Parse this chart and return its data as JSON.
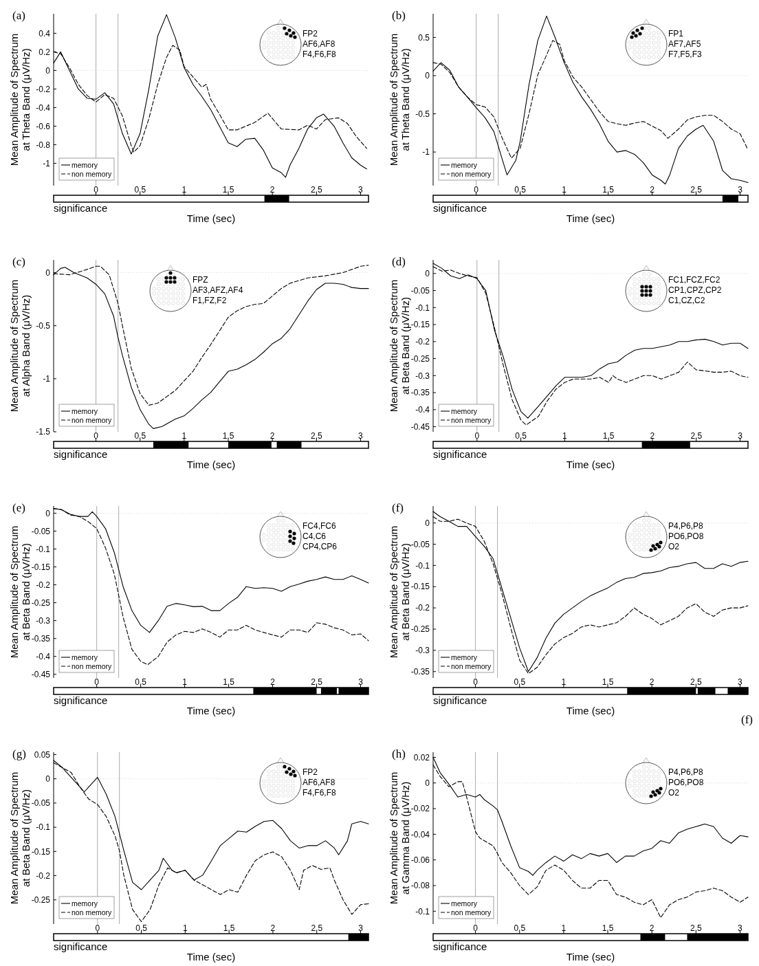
{
  "chart_data": [
    {
      "type": "line",
      "title": "(a)",
      "tick_labels": "y",
      "xlabel": "Time (sec)",
      "ylabel": "Mean Amplitude of Spectrum\nat Theta Band (μV/Hz)",
      "xlim": [
        -0.48,
        3.09
      ],
      "ylim": [
        -1.24,
        0.61
      ],
      "xticks": [
        0,
        0.5,
        1,
        1.5,
        2,
        2.5,
        3
      ],
      "yticks": [
        -1,
        -0.8,
        -0.6,
        -0.4,
        -0.2,
        0,
        0.2,
        0.4
      ],
      "grid": false,
      "legend": "bottom left",
      "series": [
        {
          "name": "memory",
          "color": "#000000",
          "line_style": "solid",
          "x": [
            -0.48,
            -0.4,
            -0.3,
            -0.2,
            -0.1,
            0,
            0.1,
            0.2,
            0.3,
            0.4,
            0.5,
            0.6,
            0.7,
            0.8,
            0.9,
            1.0,
            1.1,
            1.2,
            1.3,
            1.4,
            1.5,
            1.6,
            1.7,
            1.8,
            1.9,
            2.0,
            2.1,
            2.15,
            2.2,
            2.3,
            2.4,
            2.5,
            2.58,
            2.7,
            2.8,
            2.9,
            3.0,
            3.07
          ],
          "values": [
            0.08,
            0.2,
            0,
            -0.2,
            -0.3,
            -0.31,
            -0.24,
            -0.36,
            -0.68,
            -0.9,
            -0.68,
            -0.2,
            0.37,
            0.6,
            0.35,
            0.03,
            -0.15,
            -0.28,
            -0.42,
            -0.6,
            -0.78,
            -0.82,
            -0.74,
            -0.73,
            -0.86,
            -1.05,
            -1.1,
            -1.15,
            -1.02,
            -0.84,
            -0.63,
            -0.51,
            -0.47,
            -0.6,
            -0.78,
            -0.94,
            -1.02,
            -1.06
          ]
        },
        {
          "name": "non memory",
          "color": "#000000",
          "line_style": "dashed",
          "x": [
            -0.48,
            -0.4,
            -0.3,
            -0.2,
            -0.1,
            0,
            0.1,
            0.2,
            0.3,
            0.4,
            0.43,
            0.5,
            0.6,
            0.7,
            0.8,
            0.87,
            0.95,
            1.0,
            1.1,
            1.2,
            1.25,
            1.3,
            1.4,
            1.5,
            1.6,
            1.7,
            1.8,
            1.95,
            2.1,
            2.3,
            2.4,
            2.5,
            2.6,
            2.75,
            2.85,
            2.95,
            3.07
          ],
          "values": [
            0.2,
            0.18,
            0.03,
            -0.15,
            -0.27,
            -0.34,
            -0.26,
            -0.3,
            -0.49,
            -0.81,
            -0.88,
            -0.81,
            -0.52,
            -0.15,
            0.14,
            0.27,
            0.22,
            0.04,
            -0.07,
            -0.18,
            -0.15,
            -0.31,
            -0.47,
            -0.64,
            -0.64,
            -0.6,
            -0.56,
            -0.46,
            -0.63,
            -0.64,
            -0.59,
            -0.63,
            -0.53,
            -0.51,
            -0.57,
            -0.71,
            -0.84
          ]
        }
      ],
      "ref_lines": [
        {
          "axis": "x",
          "value": 0,
          "color": "#aaaaaa"
        },
        {
          "axis": "x",
          "value": 0.25,
          "color": "#aaaaaa"
        },
        {
          "axis": "y",
          "value": 0,
          "color": "#dddddd",
          "line_style": "dotted"
        }
      ],
      "annotations": [
        "FP2",
        "AF6,AF8",
        "F4,F6,F8"
      ]
    },
    {
      "type": "bar",
      "orientation": "horizontal",
      "categories": [
        "significance"
      ],
      "xlim": [
        -0.48,
        3.09
      ],
      "xticks": [
        0,
        0.5,
        1,
        1.5,
        2,
        2.5,
        3
      ],
      "series": [
        {
          "color": "#000000",
          "base": [
            1.91
          ],
          "values": [
            0.28
          ]
        }
      ]
    },
    {
      "type": "line",
      "title": "(b)",
      "tick_labels": "y",
      "xlabel": "Time (sec)",
      "ylabel": "Mean Amplitude of Spectrum\nat Theta Band (μV/Hz)",
      "xlim": [
        -0.49,
        3.09
      ],
      "ylim": [
        -1.44,
        0.81
      ],
      "xticks": [
        0,
        0.5,
        1,
        1.5,
        2,
        2.5,
        3
      ],
      "yticks": [
        -1,
        -0.5,
        0,
        0.5
      ],
      "grid": false,
      "legend": "bottom left",
      "series": [
        {
          "name": "memory",
          "color": "#000000",
          "line_style": "solid",
          "x": [
            -0.49,
            -0.4,
            -0.3,
            -0.2,
            -0.1,
            0,
            0.1,
            0.2,
            0.3,
            0.35,
            0.45,
            0.5,
            0.6,
            0.7,
            0.8,
            0.9,
            1.0,
            1.1,
            1.2,
            1.3,
            1.4,
            1.5,
            1.6,
            1.7,
            1.8,
            1.9,
            2.0,
            2.1,
            2.15,
            2.2,
            2.3,
            2.4,
            2.5,
            2.58,
            2.7,
            2.8,
            2.9,
            3.0,
            3.09
          ],
          "values": [
            0.06,
            0.17,
            0.07,
            -0.15,
            -0.28,
            -0.42,
            -0.55,
            -0.73,
            -1.11,
            -1.3,
            -1.11,
            -0.86,
            -0.12,
            0.46,
            0.78,
            0.49,
            0.17,
            -0.09,
            -0.28,
            -0.44,
            -0.63,
            -0.86,
            -1.0,
            -0.98,
            -1.03,
            -1.14,
            -1.3,
            -1.37,
            -1.42,
            -1.3,
            -0.95,
            -0.79,
            -0.7,
            -0.65,
            -0.86,
            -1.24,
            -1.35,
            -1.37,
            -1.4
          ]
        },
        {
          "name": "non memory",
          "color": "#000000",
          "line_style": "dashed",
          "x": [
            -0.49,
            -0.4,
            -0.3,
            -0.2,
            -0.1,
            0,
            0.1,
            0.2,
            0.3,
            0.4,
            0.5,
            0.6,
            0.7,
            0.8,
            0.87,
            0.95,
            1.0,
            1.1,
            1.2,
            1.3,
            1.4,
            1.5,
            1.6,
            1.7,
            1.8,
            1.9,
            2.0,
            2.1,
            2.18,
            2.3,
            2.4,
            2.5,
            2.6,
            2.7,
            2.8,
            2.9,
            3.0,
            3.09
          ],
          "values": [
            0.17,
            0.15,
            0.04,
            -0.15,
            -0.28,
            -0.38,
            -0.41,
            -0.54,
            -0.83,
            -1.08,
            -0.95,
            -0.5,
            0.01,
            0.27,
            0.46,
            0.41,
            0.2,
            -0.02,
            -0.15,
            -0.31,
            -0.47,
            -0.6,
            -0.63,
            -0.65,
            -0.62,
            -0.6,
            -0.66,
            -0.72,
            -0.82,
            -0.7,
            -0.58,
            -0.54,
            -0.52,
            -0.52,
            -0.6,
            -0.7,
            -0.76,
            -0.97
          ]
        }
      ],
      "ref_lines": [
        {
          "axis": "x",
          "value": 0,
          "color": "#aaaaaa"
        },
        {
          "axis": "x",
          "value": 0.25,
          "color": "#aaaaaa"
        },
        {
          "axis": "y",
          "value": 0,
          "color": "#dddddd",
          "line_style": "dotted"
        }
      ],
      "annotations": [
        "FP1",
        "AF7,AF5",
        "F7,F5,F3"
      ]
    },
    {
      "type": "bar",
      "orientation": "horizontal",
      "categories": [
        "significance"
      ],
      "xlim": [
        -0.49,
        3.09
      ],
      "xticks": [
        0,
        0.5,
        1,
        1.5,
        2,
        2.5,
        3
      ],
      "series": [
        {
          "color": "#000000",
          "base": [
            2.8
          ],
          "values": [
            0.18
          ]
        }
      ]
    },
    {
      "type": "line",
      "title": "(c)",
      "tick_labels": "y",
      "xlabel": "Time (sec)",
      "ylabel": "Mean Amplitude of Spectrum\nat Alpha Band (μV/Hz)",
      "xlim": [
        -0.48,
        3.09
      ],
      "ylim": [
        -1.5,
        0.12
      ],
      "xticks": [
        0,
        0.5,
        1,
        1.5,
        2,
        2.5,
        3
      ],
      "yticks": [
        -1.5,
        -1,
        -0.5,
        0
      ],
      "grid": false,
      "legend": "bottom left",
      "series": [
        {
          "name": "memory",
          "color": "#000000",
          "line_style": "solid",
          "x": [
            -0.48,
            -0.4,
            -0.35,
            -0.25,
            -0.1,
            0,
            0.1,
            0.2,
            0.25,
            0.3,
            0.4,
            0.5,
            0.6,
            0.65,
            0.75,
            0.9,
            1.0,
            1.1,
            1.2,
            1.3,
            1.4,
            1.5,
            1.6,
            1.7,
            1.8,
            1.9,
            2.0,
            2.1,
            2.2,
            2.3,
            2.4,
            2.5,
            2.6,
            2.7,
            2.8,
            2.9,
            3.0,
            3.09
          ],
          "values": [
            -0.02,
            0.04,
            0.05,
            0,
            -0.05,
            -0.11,
            -0.2,
            -0.41,
            -0.61,
            -0.78,
            -1.08,
            -1.29,
            -1.43,
            -1.47,
            -1.45,
            -1.38,
            -1.35,
            -1.28,
            -1.2,
            -1.13,
            -1.03,
            -0.93,
            -0.91,
            -0.87,
            -0.82,
            -0.75,
            -0.67,
            -0.62,
            -0.53,
            -0.4,
            -0.27,
            -0.16,
            -0.1,
            -0.1,
            -0.11,
            -0.14,
            -0.15,
            -0.15
          ]
        },
        {
          "name": "non memory",
          "color": "#000000",
          "line_style": "dashed",
          "x": [
            -0.48,
            -0.3,
            -0.1,
            0,
            0.05,
            0.15,
            0.25,
            0.3,
            0.4,
            0.5,
            0.6,
            0.7,
            0.8,
            0.9,
            1.0,
            1.1,
            1.2,
            1.3,
            1.4,
            1.5,
            1.6,
            1.7,
            1.8,
            1.9,
            2.0,
            2.1,
            2.2,
            2.4,
            2.6,
            2.8,
            3.0,
            3.09
          ],
          "values": [
            -0.01,
            -0.02,
            0.03,
            0.06,
            0.06,
            -0.02,
            -0.29,
            -0.5,
            -0.9,
            -1.14,
            -1.25,
            -1.23,
            -1.17,
            -1.11,
            -1.02,
            -0.93,
            -0.8,
            -0.68,
            -0.55,
            -0.42,
            -0.36,
            -0.32,
            -0.3,
            -0.29,
            -0.22,
            -0.15,
            -0.1,
            -0.05,
            -0.03,
            0,
            0.06,
            0.07
          ]
        }
      ],
      "ref_lines": [
        {
          "axis": "x",
          "value": 0,
          "color": "#aaaaaa"
        },
        {
          "axis": "x",
          "value": 0.25,
          "color": "#aaaaaa"
        },
        {
          "axis": "y",
          "value": 0,
          "color": "#dddddd",
          "line_style": "dotted"
        }
      ],
      "annotations": [
        "FPZ",
        "AF3,AFZ,AF4",
        "F1,FZ,F2"
      ]
    },
    {
      "type": "bar",
      "orientation": "horizontal",
      "categories": [
        "significance"
      ],
      "xlim": [
        -0.48,
        3.09
      ],
      "xticks": [
        0,
        0.5,
        1,
        1.5,
        2,
        2.5,
        3
      ],
      "series": [
        {
          "color": "#000000",
          "base": [
            0.65
          ],
          "values": [
            0.4
          ]
        },
        {
          "color": "#000000",
          "base": [
            1.5
          ],
          "values": [
            0.49
          ]
        },
        {
          "color": "#000000",
          "base": [
            2.05
          ],
          "values": [
            0.28
          ]
        }
      ]
    },
    {
      "type": "line",
      "title": "(d)",
      "tick_labels": "y",
      "xlabel": "Time (sec)",
      "ylabel": "Mean Amplitude of Spectrum\nat Beta Band (μV/Hz)",
      "xlim": [
        -0.5,
        3.09
      ],
      "ylim": [
        -0.465,
        0.04
      ],
      "xticks": [
        0,
        0.5,
        1,
        1.5,
        2,
        2.5,
        3
      ],
      "yticks": [
        -0.45,
        -0.4,
        -0.35,
        -0.3,
        -0.25,
        -0.2,
        -0.15,
        -0.1,
        -0.05,
        0
      ],
      "grid": false,
      "legend": "bottom left",
      "series": [
        {
          "name": "memory",
          "color": "#000000",
          "line_style": "solid",
          "x": [
            -0.5,
            -0.4,
            -0.3,
            -0.2,
            -0.1,
            0,
            0.1,
            0.2,
            0.3,
            0.4,
            0.5,
            0.58,
            0.7,
            0.8,
            0.9,
            1.0,
            1.1,
            1.2,
            1.3,
            1.4,
            1.5,
            1.6,
            1.7,
            1.8,
            1.9,
            2.0,
            2.1,
            2.2,
            2.3,
            2.4,
            2.5,
            2.6,
            2.7,
            2.8,
            2.9,
            3.0,
            3.09
          ],
          "values": [
            0.03,
            0.015,
            -0.007,
            -0.015,
            -0.004,
            -0.015,
            -0.05,
            -0.167,
            -0.245,
            -0.34,
            -0.405,
            -0.425,
            -0.39,
            -0.36,
            -0.33,
            -0.305,
            -0.305,
            -0.305,
            -0.3,
            -0.28,
            -0.265,
            -0.26,
            -0.24,
            -0.225,
            -0.22,
            -0.22,
            -0.215,
            -0.21,
            -0.2,
            -0.2,
            -0.195,
            -0.193,
            -0.2,
            -0.21,
            -0.205,
            -0.205,
            -0.22
          ]
        },
        {
          "name": "non memory",
          "color": "#000000",
          "line_style": "dashed",
          "x": [
            -0.5,
            -0.4,
            -0.3,
            -0.2,
            -0.1,
            0,
            0.1,
            0.2,
            0.3,
            0.4,
            0.5,
            0.56,
            0.7,
            0.8,
            0.9,
            1.0,
            1.1,
            1.2,
            1.3,
            1.4,
            1.5,
            1.55,
            1.6,
            1.7,
            1.8,
            1.9,
            2.0,
            2.1,
            2.2,
            2.3,
            2.4,
            2.5,
            2.6,
            2.7,
            2.8,
            2.9,
            3.0,
            3.09
          ],
          "values": [
            0.02,
            0.007,
            0.01,
            0,
            -0.007,
            -0.012,
            -0.058,
            -0.16,
            -0.27,
            -0.37,
            -0.43,
            -0.445,
            -0.42,
            -0.375,
            -0.34,
            -0.32,
            -0.31,
            -0.31,
            -0.31,
            -0.305,
            -0.32,
            -0.3,
            -0.31,
            -0.32,
            -0.31,
            -0.3,
            -0.3,
            -0.31,
            -0.3,
            -0.29,
            -0.26,
            -0.283,
            -0.286,
            -0.29,
            -0.29,
            -0.287,
            -0.3,
            -0.305
          ]
        }
      ],
      "ref_lines": [
        {
          "axis": "x",
          "value": 0,
          "color": "#aaaaaa"
        },
        {
          "axis": "x",
          "value": 0.25,
          "color": "#aaaaaa"
        },
        {
          "axis": "y",
          "value": 0,
          "color": "#dddddd",
          "line_style": "dotted"
        }
      ],
      "annotations": [
        "FC1,FCZ,FC2",
        "CP1,CPZ,CP2",
        "C1,CZ,C2"
      ]
    },
    {
      "type": "bar",
      "orientation": "horizontal",
      "categories": [
        "significance"
      ],
      "xlim": [
        -0.5,
        3.09
      ],
      "xticks": [
        0,
        0.5,
        1,
        1.5,
        2,
        2.5,
        3
      ],
      "series": [
        {
          "color": "#000000",
          "base": [
            1.88
          ],
          "values": [
            0.55
          ]
        }
      ]
    },
    {
      "type": "line",
      "title": "(e)",
      "tick_labels": "y",
      "xlabel": "Time (sec)",
      "ylabel": "Mean Amplitude of Spectrum\nat Beta Band (μV/Hz)",
      "xlim": [
        -0.49,
        3.09
      ],
      "ylim": [
        -0.46,
        0.02
      ],
      "xticks": [
        0,
        0.5,
        1,
        1.5,
        2,
        2.5,
        3
      ],
      "yticks": [
        -0.45,
        -0.4,
        -0.35,
        -0.3,
        -0.25,
        -0.2,
        -0.15,
        -0.1,
        -0.05,
        0
      ],
      "grid": false,
      "legend": "bottom left",
      "series": [
        {
          "name": "memory",
          "color": "#000000",
          "line_style": "solid",
          "x": [
            -0.49,
            -0.4,
            -0.3,
            -0.2,
            -0.1,
            -0.05,
            0,
            0.1,
            0.2,
            0.3,
            0.4,
            0.5,
            0.6,
            0.7,
            0.8,
            0.9,
            1.0,
            1.1,
            1.2,
            1.3,
            1.4,
            1.5,
            1.6,
            1.7,
            1.8,
            1.9,
            2.0,
            2.1,
            2.2,
            2.3,
            2.4,
            2.5,
            2.6,
            2.7,
            2.8,
            2.9,
            3.0,
            3.09
          ],
          "values": [
            0.013,
            0.01,
            -0.003,
            -0.009,
            -0.009,
            0.004,
            -0.009,
            -0.043,
            -0.11,
            -0.205,
            -0.272,
            -0.313,
            -0.333,
            -0.3,
            -0.26,
            -0.252,
            -0.256,
            -0.261,
            -0.26,
            -0.272,
            -0.272,
            -0.252,
            -0.235,
            -0.205,
            -0.21,
            -0.208,
            -0.21,
            -0.218,
            -0.205,
            -0.198,
            -0.19,
            -0.185,
            -0.178,
            -0.185,
            -0.185,
            -0.175,
            -0.185,
            -0.195
          ]
        },
        {
          "name": "non memory",
          "color": "#000000",
          "line_style": "dashed",
          "x": [
            -0.49,
            -0.4,
            -0.3,
            -0.2,
            -0.1,
            0,
            0.1,
            0.2,
            0.3,
            0.4,
            0.5,
            0.58,
            0.7,
            0.8,
            0.9,
            1.0,
            1.1,
            1.2,
            1.3,
            1.4,
            1.5,
            1.6,
            1.7,
            1.8,
            1.9,
            2.0,
            2.1,
            2.2,
            2.3,
            2.4,
            2.5,
            2.6,
            2.7,
            2.8,
            2.9,
            3.0,
            3.09
          ],
          "values": [
            0.013,
            0.01,
            -0.005,
            -0.009,
            -0.023,
            -0.043,
            -0.097,
            -0.17,
            -0.29,
            -0.38,
            -0.414,
            -0.423,
            -0.4,
            -0.36,
            -0.34,
            -0.33,
            -0.333,
            -0.323,
            -0.333,
            -0.346,
            -0.326,
            -0.326,
            -0.313,
            -0.326,
            -0.333,
            -0.34,
            -0.346,
            -0.326,
            -0.326,
            -0.333,
            -0.306,
            -0.31,
            -0.32,
            -0.326,
            -0.34,
            -0.337,
            -0.356
          ]
        }
      ],
      "ref_lines": [
        {
          "axis": "x",
          "value": 0,
          "color": "#aaaaaa"
        },
        {
          "axis": "x",
          "value": 0.25,
          "color": "#aaaaaa"
        },
        {
          "axis": "y",
          "value": 0,
          "color": "#dddddd",
          "line_style": "dotted"
        }
      ],
      "annotations": [
        "FC4,FC6",
        "C4,C6",
        "CP4,CP6"
      ]
    },
    {
      "type": "bar",
      "orientation": "horizontal",
      "categories": [
        "significance"
      ],
      "xlim": [
        -0.49,
        3.09
      ],
      "xticks": [
        0,
        0.5,
        1,
        1.5,
        2,
        2.5,
        3
      ],
      "series": [
        {
          "color": "#000000",
          "base": [
            1.78
          ],
          "values": [
            0.72
          ]
        },
        {
          "color": "#000000",
          "base": [
            2.55
          ],
          "values": [
            0.18
          ]
        },
        {
          "color": "#000000",
          "base": [
            2.75
          ],
          "values": [
            0.34
          ]
        }
      ]
    },
    {
      "type": "line",
      "title": "(f)",
      "tick_labels": "y",
      "xlabel": "Time (sec)",
      "ylabel": "Mean Amplitude of Spectrum\nat Beta Band (μV/Hz)",
      "xlim": [
        -0.48,
        3.09
      ],
      "ylim": [
        -0.365,
        0.04
      ],
      "xticks": [
        0,
        0.5,
        1,
        1.5,
        2,
        2.5,
        3
      ],
      "yticks": [
        -0.35,
        -0.3,
        -0.25,
        -0.2,
        -0.15,
        -0.1,
        -0.05,
        0
      ],
      "grid": false,
      "legend": "bottom left",
      "series": [
        {
          "name": "memory",
          "color": "#000000",
          "line_style": "solid",
          "x": [
            -0.48,
            -0.4,
            -0.3,
            -0.2,
            -0.1,
            0,
            0.1,
            0.2,
            0.25,
            0.3,
            0.4,
            0.5,
            0.6,
            0.7,
            0.8,
            0.9,
            1.0,
            1.1,
            1.2,
            1.3,
            1.4,
            1.5,
            1.6,
            1.7,
            1.8,
            1.9,
            2.0,
            2.1,
            2.2,
            2.3,
            2.4,
            2.5,
            2.6,
            2.7,
            2.8,
            2.9,
            3.0,
            3.09
          ],
          "values": [
            0.027,
            0.015,
            0.004,
            -0.008,
            -0.008,
            -0.032,
            -0.055,
            -0.084,
            -0.119,
            -0.154,
            -0.224,
            -0.294,
            -0.35,
            -0.317,
            -0.271,
            -0.236,
            -0.215,
            -0.2,
            -0.185,
            -0.172,
            -0.162,
            -0.153,
            -0.14,
            -0.131,
            -0.128,
            -0.119,
            -0.117,
            -0.113,
            -0.105,
            -0.102,
            -0.096,
            -0.093,
            -0.107,
            -0.107,
            -0.096,
            -0.102,
            -0.093,
            -0.09
          ]
        },
        {
          "name": "non memory",
          "color": "#000000",
          "line_style": "dashed",
          "x": [
            -0.48,
            -0.4,
            -0.3,
            -0.2,
            -0.1,
            0,
            0.1,
            0.2,
            0.3,
            0.4,
            0.5,
            0.6,
            0.7,
            0.8,
            0.9,
            1.0,
            1.1,
            1.2,
            1.3,
            1.4,
            1.5,
            1.6,
            1.7,
            1.8,
            1.9,
            2.0,
            2.1,
            2.2,
            2.3,
            2.4,
            2.5,
            2.6,
            2.7,
            2.8,
            2.9,
            3.0,
            3.09
          ],
          "values": [
            0.015,
            0.004,
            0.004,
            0.009,
            0,
            -0.008,
            -0.043,
            -0.096,
            -0.166,
            -0.247,
            -0.323,
            -0.355,
            -0.34,
            -0.31,
            -0.285,
            -0.27,
            -0.26,
            -0.245,
            -0.24,
            -0.245,
            -0.24,
            -0.235,
            -0.22,
            -0.2,
            -0.215,
            -0.225,
            -0.24,
            -0.23,
            -0.22,
            -0.2,
            -0.19,
            -0.21,
            -0.22,
            -0.205,
            -0.2,
            -0.2,
            -0.195
          ]
        }
      ],
      "ref_lines": [
        {
          "axis": "x",
          "value": 0,
          "color": "#aaaaaa"
        },
        {
          "axis": "x",
          "value": 0.25,
          "color": "#aaaaaa"
        },
        {
          "axis": "y",
          "value": 0,
          "color": "#dddddd",
          "line_style": "dotted"
        }
      ],
      "annotations": [
        "P4,P6,P8",
        "PO6,PO8",
        "O2",
        "(f)"
      ]
    },
    {
      "type": "bar",
      "orientation": "horizontal",
      "categories": [
        "significance"
      ],
      "xlim": [
        -0.48,
        3.09
      ],
      "xticks": [
        0,
        0.5,
        1,
        1.5,
        2,
        2.5,
        3
      ],
      "series": [
        {
          "color": "#000000",
          "base": [
            1.72
          ],
          "values": [
            0.78
          ]
        },
        {
          "color": "#000000",
          "base": [
            2.52
          ],
          "values": [
            0.2
          ]
        },
        {
          "color": "#000000",
          "base": [
            2.86
          ],
          "values": [
            0.23
          ]
        }
      ]
    },
    {
      "type": "line",
      "title": "(g)",
      "tick_labels": "y",
      "xlabel": "Time (sec)",
      "ylabel": "Mean Amplitude of Spectrum\nat Beta Band (μV/Hz)",
      "xlim": [
        -0.5,
        3.09
      ],
      "ylim": [
        -0.3,
        0.055
      ],
      "xticks": [
        0,
        0.5,
        1,
        1.5,
        2,
        2.5,
        3
      ],
      "yticks": [
        -0.25,
        -0.2,
        -0.15,
        -0.1,
        -0.05,
        0,
        0.05
      ],
      "grid": false,
      "legend": "bottom left",
      "series": [
        {
          "name": "memory",
          "color": "#000000",
          "line_style": "solid",
          "x": [
            -0.5,
            -0.4,
            -0.3,
            -0.2,
            -0.15,
            -0.1,
            0,
            0.1,
            0.2,
            0.3,
            0.4,
            0.5,
            0.6,
            0.7,
            0.75,
            0.85,
            0.9,
            1.0,
            1.1,
            1.2,
            1.3,
            1.4,
            1.5,
            1.6,
            1.7,
            1.8,
            1.9,
            2.0,
            2.1,
            2.2,
            2.3,
            2.4,
            2.5,
            2.6,
            2.7,
            2.75,
            2.85,
            2.9,
            3.0,
            3.09
          ],
          "values": [
            0.038,
            0.023,
            0.003,
            -0.017,
            -0.027,
            -0.017,
            0.003,
            -0.032,
            -0.078,
            -0.148,
            -0.214,
            -0.229,
            -0.209,
            -0.189,
            -0.164,
            -0.189,
            -0.194,
            -0.189,
            -0.209,
            -0.199,
            -0.169,
            -0.138,
            -0.123,
            -0.108,
            -0.11,
            -0.098,
            -0.088,
            -0.086,
            -0.103,
            -0.128,
            -0.143,
            -0.138,
            -0.138,
            -0.128,
            -0.143,
            -0.157,
            -0.128,
            -0.093,
            -0.088,
            -0.093
          ]
        },
        {
          "name": "non memory",
          "color": "#000000",
          "line_style": "dashed",
          "x": [
            -0.5,
            -0.4,
            -0.3,
            -0.2,
            -0.1,
            0,
            0.1,
            0.2,
            0.25,
            0.3,
            0.4,
            0.5,
            0.6,
            0.7,
            0.8,
            0.9,
            1.0,
            1.1,
            1.2,
            1.3,
            1.4,
            1.5,
            1.6,
            1.7,
            1.8,
            1.9,
            2.0,
            2.1,
            2.2,
            2.3,
            2.35,
            2.45,
            2.55,
            2.65,
            2.7,
            2.8,
            2.9,
            3.0,
            3.09
          ],
          "values": [
            0.033,
            0.023,
            0.013,
            -0.017,
            -0.042,
            -0.053,
            -0.078,
            -0.118,
            -0.148,
            -0.199,
            -0.27,
            -0.295,
            -0.27,
            -0.219,
            -0.184,
            -0.194,
            -0.189,
            -0.209,
            -0.219,
            -0.229,
            -0.239,
            -0.229,
            -0.234,
            -0.199,
            -0.169,
            -0.157,
            -0.151,
            -0.161,
            -0.189,
            -0.229,
            -0.189,
            -0.179,
            -0.187,
            -0.184,
            -0.209,
            -0.25,
            -0.28,
            -0.26,
            -0.258
          ]
        }
      ],
      "ref_lines": [
        {
          "axis": "x",
          "value": 0,
          "color": "#aaaaaa"
        },
        {
          "axis": "x",
          "value": 0.25,
          "color": "#aaaaaa"
        },
        {
          "axis": "y",
          "value": 0,
          "color": "#dddddd",
          "line_style": "dotted"
        }
      ],
      "annotations": [
        "FP2",
        "AF6,AF8",
        "F4,F6,F8"
      ]
    },
    {
      "type": "bar",
      "orientation": "horizontal",
      "categories": [
        "significance"
      ],
      "xlim": [
        -0.5,
        3.09
      ],
      "xticks": [
        0,
        0.5,
        1,
        1.5,
        2,
        2.5,
        3
      ],
      "series": [
        {
          "color": "#000000",
          "base": [
            2.86
          ],
          "values": [
            0.23
          ]
        }
      ]
    },
    {
      "type": "line",
      "title": "(h)",
      "tick_labels": "y",
      "xlabel": "Time (sec)",
      "ylabel": "Mean Amplitude of Spectrum\nat Gamma Band (μV/Hz)",
      "xlim": [
        -0.48,
        3.09
      ],
      "ylim": [
        -0.11,
        0.024
      ],
      "xticks": [
        0,
        0.5,
        1,
        1.5,
        2,
        2.5,
        3
      ],
      "yticks": [
        -0.1,
        -0.08,
        -0.06,
        -0.04,
        -0.02,
        0,
        0.02
      ],
      "grid": false,
      "legend": "bottom left",
      "series": [
        {
          "name": "memory",
          "color": "#000000",
          "line_style": "solid",
          "x": [
            -0.48,
            -0.4,
            -0.3,
            -0.2,
            -0.1,
            0,
            0.05,
            0.1,
            0.2,
            0.25,
            0.3,
            0.4,
            0.5,
            0.6,
            0.65,
            0.7,
            0.8,
            0.9,
            1.0,
            1.1,
            1.2,
            1.3,
            1.4,
            1.5,
            1.6,
            1.7,
            1.8,
            1.9,
            2.0,
            2.1,
            2.2,
            2.3,
            2.4,
            2.5,
            2.6,
            2.7,
            2.8,
            2.9,
            3.0,
            3.09
          ],
          "values": [
            0.02,
            0.008,
            -0.001,
            -0.011,
            -0.009,
            -0.011,
            -0.009,
            -0.013,
            -0.018,
            -0.021,
            -0.03,
            -0.049,
            -0.066,
            -0.069,
            -0.072,
            -0.068,
            -0.062,
            -0.057,
            -0.061,
            -0.056,
            -0.059,
            -0.055,
            -0.057,
            -0.055,
            -0.062,
            -0.057,
            -0.057,
            -0.053,
            -0.051,
            -0.045,
            -0.047,
            -0.039,
            -0.036,
            -0.034,
            -0.032,
            -0.034,
            -0.043,
            -0.047,
            -0.041,
            -0.042
          ]
        },
        {
          "name": "non memory",
          "color": "#000000",
          "line_style": "dashed",
          "x": [
            -0.48,
            -0.4,
            -0.3,
            -0.2,
            -0.15,
            -0.1,
            0,
            0.05,
            0.2,
            0.25,
            0.3,
            0.4,
            0.5,
            0.6,
            0.7,
            0.8,
            0.9,
            1.0,
            1.1,
            1.2,
            1.3,
            1.4,
            1.5,
            1.6,
            1.7,
            1.8,
            1.9,
            2.0,
            2.1,
            2.2,
            2.3,
            2.4,
            2.5,
            2.6,
            2.7,
            2.8,
            2.9,
            3.0,
            3.09
          ],
          "values": [
            0.014,
            0.005,
            -0.003,
            0.001,
            0.001,
            -0.011,
            -0.038,
            -0.043,
            -0.049,
            -0.055,
            -0.062,
            -0.07,
            -0.08,
            -0.087,
            -0.081,
            -0.068,
            -0.064,
            -0.068,
            -0.076,
            -0.082,
            -0.082,
            -0.076,
            -0.076,
            -0.087,
            -0.089,
            -0.093,
            -0.095,
            -0.091,
            -0.105,
            -0.095,
            -0.091,
            -0.089,
            -0.085,
            -0.084,
            -0.082,
            -0.084,
            -0.089,
            -0.093,
            -0.089
          ]
        }
      ],
      "ref_lines": [
        {
          "axis": "x",
          "value": 0,
          "color": "#aaaaaa"
        },
        {
          "axis": "x",
          "value": 0.25,
          "color": "#aaaaaa"
        },
        {
          "axis": "y",
          "value": 0,
          "color": "#dddddd",
          "line_style": "dotted"
        }
      ],
      "annotations": [
        "P4,P6,P8",
        "PO6,PO8",
        "O2"
      ]
    },
    {
      "type": "bar",
      "orientation": "horizontal",
      "categories": [
        "significance"
      ],
      "xlim": [
        -0.48,
        3.09
      ],
      "xticks": [
        0,
        0.5,
        1,
        1.5,
        2,
        2.5,
        3
      ],
      "series": [
        {
          "color": "#000000",
          "base": [
            1.87
          ],
          "values": [
            0.28
          ]
        },
        {
          "color": "#000000",
          "base": [
            2.4
          ],
          "values": [
            0.69
          ]
        }
      ]
    }
  ]
}
